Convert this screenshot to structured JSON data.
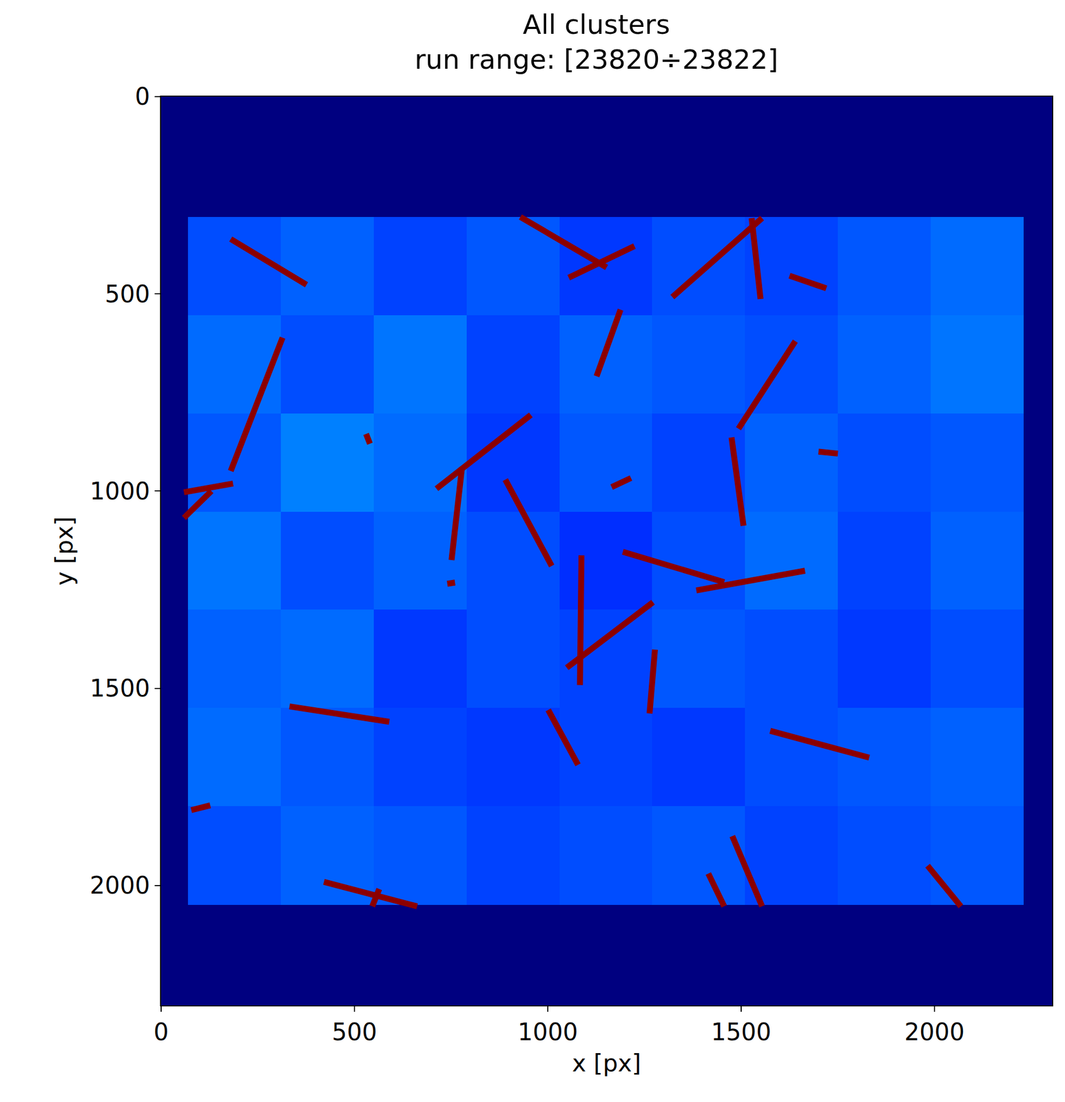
{
  "chart_data": {
    "type": "heatmap",
    "title": "All clusters",
    "subtitle": "run range: [23820÷23822]",
    "x_label": "x [px]",
    "y_label": "y [px]",
    "xlim": [
      0,
      2304
    ],
    "ylim": [
      2304,
      0
    ],
    "xticks": [
      0,
      500,
      1000,
      1500,
      2000
    ],
    "yticks": [
      0,
      500,
      1000,
      1500,
      2000
    ],
    "grid": false,
    "x_edges": [
      0,
      70,
      310,
      550,
      790,
      1030,
      1270,
      1510,
      1750,
      1990,
      2230,
      2304
    ],
    "y_edges": [
      0,
      305,
      554,
      803,
      1052,
      1301,
      1550,
      1799,
      2050,
      2304
    ],
    "cells": [
      [
        0,
        0,
        0,
        0,
        0,
        0,
        0,
        0,
        0,
        0,
        0
      ],
      [
        0,
        2.0,
        2.2,
        1.9,
        2.1,
        1.8,
        2.0,
        1.9,
        2.1,
        2.3,
        0
      ],
      [
        0,
        2.3,
        2.0,
        2.4,
        1.9,
        2.2,
        2.1,
        2.0,
        2.2,
        2.4,
        0
      ],
      [
        0,
        2.1,
        2.5,
        2.3,
        1.8,
        2.1,
        1.9,
        2.2,
        2.0,
        2.1,
        0
      ],
      [
        0,
        2.4,
        2.0,
        2.2,
        2.0,
        1.7,
        2.0,
        2.3,
        1.9,
        2.2,
        0
      ],
      [
        0,
        2.2,
        2.3,
        1.8,
        2.0,
        1.9,
        2.1,
        2.0,
        1.8,
        2.0,
        0
      ],
      [
        0,
        2.3,
        2.1,
        1.9,
        1.8,
        1.9,
        1.8,
        2.0,
        2.1,
        2.2,
        0
      ],
      [
        0,
        2.0,
        2.2,
        2.1,
        1.9,
        2.0,
        2.1,
        1.9,
        2.0,
        2.1,
        0
      ],
      [
        0,
        0,
        0,
        0,
        0,
        0,
        0,
        0,
        0,
        0,
        0
      ]
    ],
    "zlim": [
      0,
      10
    ],
    "tracks": {
      "color": "#8b0000",
      "segments": [
        [
          180,
          361,
          376,
          477
        ],
        [
          314,
          611,
          180,
          949
        ],
        [
          59,
          1003,
          186,
          981
        ],
        [
          130,
          1000,
          59,
          1068
        ],
        [
          929,
          305,
          1152,
          433
        ],
        [
          1054,
          459,
          1224,
          379
        ],
        [
          1322,
          508,
          1554,
          308
        ],
        [
          1527,
          308,
          1550,
          513
        ],
        [
          1625,
          454,
          1720,
          486
        ],
        [
          1188,
          540,
          1126,
          709
        ],
        [
          1640,
          620,
          1493,
          842
        ],
        [
          1475,
          864,
          1506,
          1088
        ],
        [
          956,
          807,
          712,
          994
        ],
        [
          778,
          940,
          751,
          1175
        ],
        [
          890,
          971,
          1010,
          1190
        ],
        [
          1165,
          990,
          1215,
          967
        ],
        [
          1087,
          1163,
          1083,
          1492
        ],
        [
          1049,
          1448,
          1272,
          1282
        ],
        [
          1194,
          1154,
          1456,
          1231
        ],
        [
          1384,
          1252,
          1665,
          1202
        ],
        [
          1277,
          1402,
          1263,
          1564
        ],
        [
          1001,
          1555,
          1078,
          1694
        ],
        [
          332,
          1546,
          590,
          1585
        ],
        [
          1575,
          1608,
          1831,
          1676
        ],
        [
          78,
          1809,
          127,
          1797
        ],
        [
          421,
          1991,
          662,
          2053
        ],
        [
          564,
          2009,
          546,
          2053
        ],
        [
          1415,
          1970,
          1456,
          2053
        ],
        [
          1477,
          1875,
          1554,
          2053
        ],
        [
          1982,
          1950,
          2068,
          2053
        ],
        [
          1700,
          900,
          1750,
          905
        ],
        [
          740,
          1235,
          760,
          1232
        ],
        [
          530,
          855,
          540,
          880
        ]
      ]
    }
  }
}
